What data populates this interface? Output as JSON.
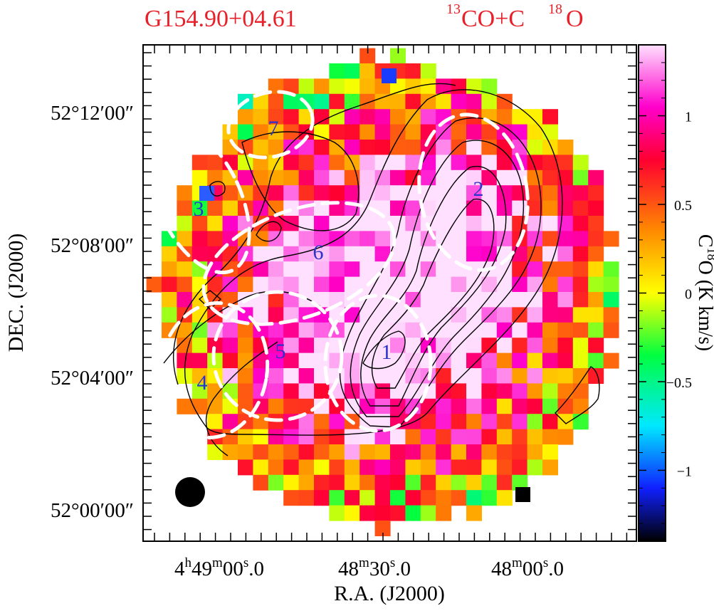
{
  "title": {
    "source": "G154.90+04.61",
    "tracer_prefix": "13",
    "tracer_mid": "CO+C",
    "tracer_sup": "18",
    "tracer_suffix": "O"
  },
  "colors": {
    "title": "#e8202a",
    "core_label": "#2a33cc",
    "dashed_ellipse": "#ffffff",
    "contour": "#000000",
    "frame": "#000000"
  },
  "chart_data": {
    "type": "heatmap",
    "xlabel": "R.A. (J2000)",
    "ylabel": "DEC. (J2000)",
    "x_ticks": [
      {
        "h": "4",
        "hs": "h",
        "m": "49",
        "ms": "m",
        "s": "00",
        "ss": "s",
        "frac": ".0"
      },
      {
        "h": "",
        "hs": "",
        "m": "48",
        "ms": "m",
        "s": "30",
        "ss": "s",
        "frac": ".0"
      },
      {
        "h": "",
        "hs": "",
        "m": "48",
        "ms": "m",
        "s": "00",
        "ss": "s",
        "frac": ".0"
      }
    ],
    "y_ticks": [
      "52°12′00″",
      "52°08′00″",
      "52°04′00″",
      "52°00′00″"
    ],
    "colorbar": {
      "label_pre": "C",
      "label_sup": "18",
      "label_post": "O (K km/s)",
      "ticks": [
        "1",
        "0.5",
        "0",
        "−0.5",
        "−1"
      ],
      "range": [
        -1.4,
        1.4
      ],
      "stops": [
        {
          "v": -1.4,
          "c": "#000000"
        },
        {
          "v": -1.1,
          "c": "#1020ff"
        },
        {
          "v": -0.75,
          "c": "#00e8ff"
        },
        {
          "v": -0.35,
          "c": "#00ff40"
        },
        {
          "v": 0.0,
          "c": "#ffff00"
        },
        {
          "v": 0.35,
          "c": "#ff8a00"
        },
        {
          "v": 0.75,
          "c": "#ff0030"
        },
        {
          "v": 1.05,
          "c": "#ff00cc"
        },
        {
          "v": 1.4,
          "c": "#ffe0ff"
        }
      ]
    },
    "grid_size": 32,
    "map_radius_cells": 15.2,
    "structure_labels": [
      "1",
      "2",
      "3",
      "4",
      "5",
      "6",
      "7"
    ]
  }
}
